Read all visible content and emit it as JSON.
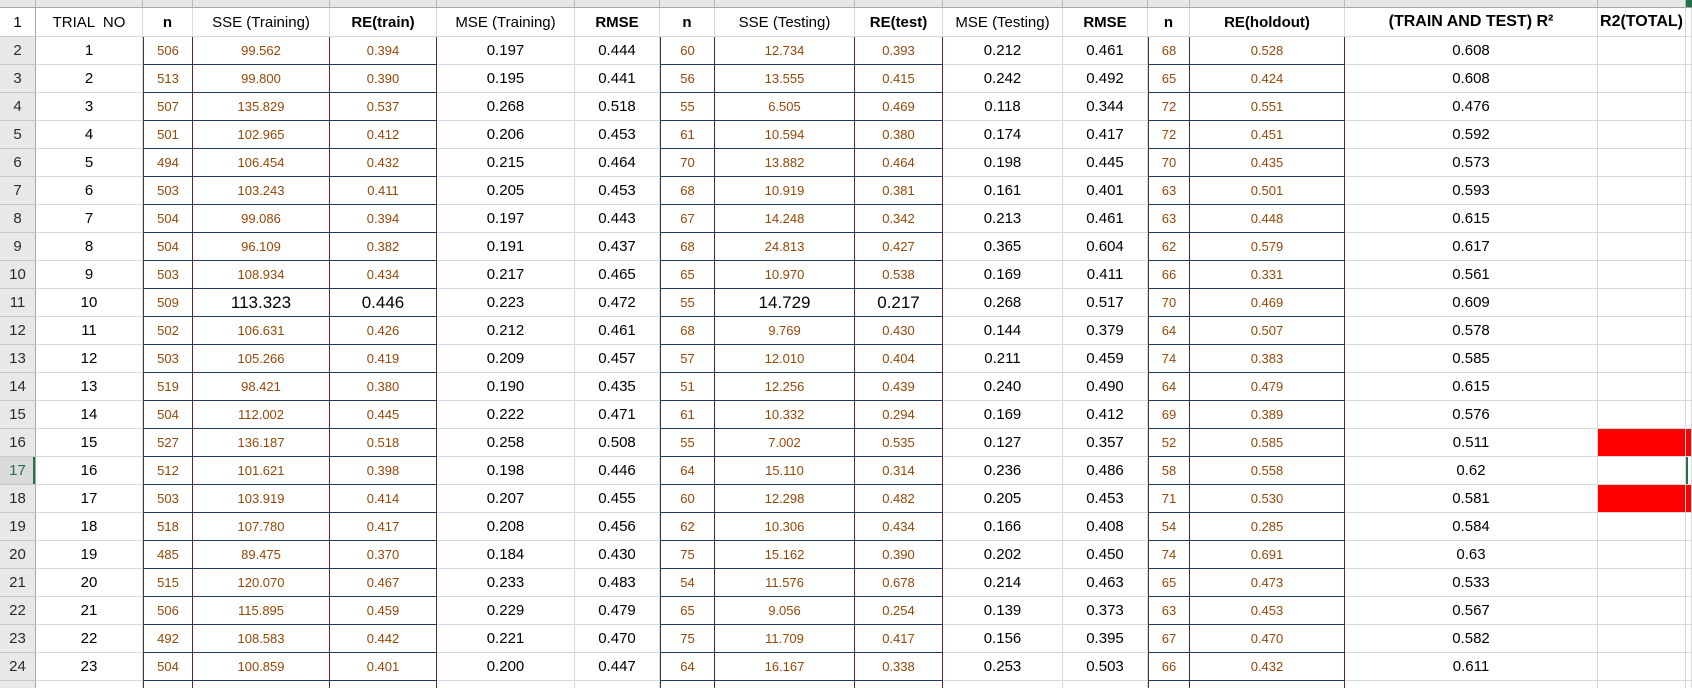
{
  "sheet": {
    "header_row_num": "1",
    "selected_row_num": "17",
    "red_fill_row_nums": [
      "16",
      "18"
    ],
    "emphasized_row_num": "11",
    "emphasized_keys": [
      "sse_train",
      "re_train",
      "sse_test",
      "re_test"
    ],
    "colors": {
      "brown_text": "#974706",
      "navy_border": "#1F3864",
      "maroon_border": "#632423",
      "red_fill": "#FF0000",
      "selection_green": "#217346",
      "gutter_gray": "#E8E8E8"
    },
    "columns": [
      {
        "key": "trial",
        "label": "TRIAL  NO"
      },
      {
        "key": "n_train",
        "label": "n"
      },
      {
        "key": "sse_train",
        "label": "SSE (Training)"
      },
      {
        "key": "re_train",
        "label": "RE(train)"
      },
      {
        "key": "mse_train",
        "label": "MSE (Training)"
      },
      {
        "key": "rmse_train",
        "label": "RMSE"
      },
      {
        "key": "n_test",
        "label": "n"
      },
      {
        "key": "sse_test",
        "label": "SSE (Testing)"
      },
      {
        "key": "re_test",
        "label": "RE(test)"
      },
      {
        "key": "mse_test",
        "label": "MSE (Testing)"
      },
      {
        "key": "rmse_test",
        "label": "RMSE"
      },
      {
        "key": "n_holdout",
        "label": "n"
      },
      {
        "key": "re_holdout",
        "label": "RE(holdout)"
      },
      {
        "key": "r2_traintest",
        "label": "(TRAIN AND TEST) R²"
      },
      {
        "key": "r2_total",
        "label": "R2(TOTAL)"
      },
      {
        "key": "stub",
        "label": ""
      }
    ],
    "rows": [
      {
        "num": "2",
        "trial": "1",
        "n_train": "506",
        "sse_train": "99.562",
        "re_train": "0.394",
        "mse_train": "0.197",
        "rmse_train": "0.444",
        "n_test": "60",
        "sse_test": "12.734",
        "re_test": "0.393",
        "mse_test": "0.212",
        "rmse_test": "0.461",
        "n_holdout": "68",
        "re_holdout": "0.528",
        "r2_traintest": "0.608",
        "r2_total": ""
      },
      {
        "num": "3",
        "trial": "2",
        "n_train": "513",
        "sse_train": "99.800",
        "re_train": "0.390",
        "mse_train": "0.195",
        "rmse_train": "0.441",
        "n_test": "56",
        "sse_test": "13.555",
        "re_test": "0.415",
        "mse_test": "0.242",
        "rmse_test": "0.492",
        "n_holdout": "65",
        "re_holdout": "0.424",
        "r2_traintest": "0.608",
        "r2_total": ""
      },
      {
        "num": "4",
        "trial": "3",
        "n_train": "507",
        "sse_train": "135.829",
        "re_train": "0.537",
        "mse_train": "0.268",
        "rmse_train": "0.518",
        "n_test": "55",
        "sse_test": "6.505",
        "re_test": "0.469",
        "mse_test": "0.118",
        "rmse_test": "0.344",
        "n_holdout": "72",
        "re_holdout": "0.551",
        "r2_traintest": "0.476",
        "r2_total": ""
      },
      {
        "num": "5",
        "trial": "4",
        "n_train": "501",
        "sse_train": "102.965",
        "re_train": "0.412",
        "mse_train": "0.206",
        "rmse_train": "0.453",
        "n_test": "61",
        "sse_test": "10.594",
        "re_test": "0.380",
        "mse_test": "0.174",
        "rmse_test": "0.417",
        "n_holdout": "72",
        "re_holdout": "0.451",
        "r2_traintest": "0.592",
        "r2_total": ""
      },
      {
        "num": "6",
        "trial": "5",
        "n_train": "494",
        "sse_train": "106.454",
        "re_train": "0.432",
        "mse_train": "0.215",
        "rmse_train": "0.464",
        "n_test": "70",
        "sse_test": "13.882",
        "re_test": "0.464",
        "mse_test": "0.198",
        "rmse_test": "0.445",
        "n_holdout": "70",
        "re_holdout": "0.435",
        "r2_traintest": "0.573",
        "r2_total": ""
      },
      {
        "num": "7",
        "trial": "6",
        "n_train": "503",
        "sse_train": "103.243",
        "re_train": "0.411",
        "mse_train": "0.205",
        "rmse_train": "0.453",
        "n_test": "68",
        "sse_test": "10.919",
        "re_test": "0.381",
        "mse_test": "0.161",
        "rmse_test": "0.401",
        "n_holdout": "63",
        "re_holdout": "0.501",
        "r2_traintest": "0.593",
        "r2_total": ""
      },
      {
        "num": "8",
        "trial": "7",
        "n_train": "504",
        "sse_train": "99.086",
        "re_train": "0.394",
        "mse_train": "0.197",
        "rmse_train": "0.443",
        "n_test": "67",
        "sse_test": "14.248",
        "re_test": "0.342",
        "mse_test": "0.213",
        "rmse_test": "0.461",
        "n_holdout": "63",
        "re_holdout": "0.448",
        "r2_traintest": "0.615",
        "r2_total": ""
      },
      {
        "num": "9",
        "trial": "8",
        "n_train": "504",
        "sse_train": "96.109",
        "re_train": "0.382",
        "mse_train": "0.191",
        "rmse_train": "0.437",
        "n_test": "68",
        "sse_test": "24.813",
        "re_test": "0.427",
        "mse_test": "0.365",
        "rmse_test": "0.604",
        "n_holdout": "62",
        "re_holdout": "0.579",
        "r2_traintest": "0.617",
        "r2_total": ""
      },
      {
        "num": "10",
        "trial": "9",
        "n_train": "503",
        "sse_train": "108.934",
        "re_train": "0.434",
        "mse_train": "0.217",
        "rmse_train": "0.465",
        "n_test": "65",
        "sse_test": "10.970",
        "re_test": "0.538",
        "mse_test": "0.169",
        "rmse_test": "0.411",
        "n_holdout": "66",
        "re_holdout": "0.331",
        "r2_traintest": "0.561",
        "r2_total": ""
      },
      {
        "num": "11",
        "trial": "10",
        "n_train": "509",
        "sse_train": "113.323",
        "re_train": "0.446",
        "mse_train": "0.223",
        "rmse_train": "0.472",
        "n_test": "55",
        "sse_test": "14.729",
        "re_test": "0.217",
        "mse_test": "0.268",
        "rmse_test": "0.517",
        "n_holdout": "70",
        "re_holdout": "0.469",
        "r2_traintest": "0.609",
        "r2_total": ""
      },
      {
        "num": "12",
        "trial": "11",
        "n_train": "502",
        "sse_train": "106.631",
        "re_train": "0.426",
        "mse_train": "0.212",
        "rmse_train": "0.461",
        "n_test": "68",
        "sse_test": "9.769",
        "re_test": "0.430",
        "mse_test": "0.144",
        "rmse_test": "0.379",
        "n_holdout": "64",
        "re_holdout": "0.507",
        "r2_traintest": "0.578",
        "r2_total": ""
      },
      {
        "num": "13",
        "trial": "12",
        "n_train": "503",
        "sse_train": "105.266",
        "re_train": "0.419",
        "mse_train": "0.209",
        "rmse_train": "0.457",
        "n_test": "57",
        "sse_test": "12.010",
        "re_test": "0.404",
        "mse_test": "0.211",
        "rmse_test": "0.459",
        "n_holdout": "74",
        "re_holdout": "0.383",
        "r2_traintest": "0.585",
        "r2_total": ""
      },
      {
        "num": "14",
        "trial": "13",
        "n_train": "519",
        "sse_train": "98.421",
        "re_train": "0.380",
        "mse_train": "0.190",
        "rmse_train": "0.435",
        "n_test": "51",
        "sse_test": "12.256",
        "re_test": "0.439",
        "mse_test": "0.240",
        "rmse_test": "0.490",
        "n_holdout": "64",
        "re_holdout": "0.479",
        "r2_traintest": "0.615",
        "r2_total": ""
      },
      {
        "num": "15",
        "trial": "14",
        "n_train": "504",
        "sse_train": "112.002",
        "re_train": "0.445",
        "mse_train": "0.222",
        "rmse_train": "0.471",
        "n_test": "61",
        "sse_test": "10.332",
        "re_test": "0.294",
        "mse_test": "0.169",
        "rmse_test": "0.412",
        "n_holdout": "69",
        "re_holdout": "0.389",
        "r2_traintest": "0.576",
        "r2_total": ""
      },
      {
        "num": "16",
        "trial": "15",
        "n_train": "527",
        "sse_train": "136.187",
        "re_train": "0.518",
        "mse_train": "0.258",
        "rmse_train": "0.508",
        "n_test": "55",
        "sse_test": "7.002",
        "re_test": "0.535",
        "mse_test": "0.127",
        "rmse_test": "0.357",
        "n_holdout": "52",
        "re_holdout": "0.585",
        "r2_traintest": "0.511",
        "r2_total": ""
      },
      {
        "num": "17",
        "trial": "16",
        "n_train": "512",
        "sse_train": "101.621",
        "re_train": "0.398",
        "mse_train": "0.198",
        "rmse_train": "0.446",
        "n_test": "64",
        "sse_test": "15.110",
        "re_test": "0.314",
        "mse_test": "0.236",
        "rmse_test": "0.486",
        "n_holdout": "58",
        "re_holdout": "0.558",
        "r2_traintest": "0.62",
        "r2_total": ""
      },
      {
        "num": "18",
        "trial": "17",
        "n_train": "503",
        "sse_train": "103.919",
        "re_train": "0.414",
        "mse_train": "0.207",
        "rmse_train": "0.455",
        "n_test": "60",
        "sse_test": "12.298",
        "re_test": "0.482",
        "mse_test": "0.205",
        "rmse_test": "0.453",
        "n_holdout": "71",
        "re_holdout": "0.530",
        "r2_traintest": "0.581",
        "r2_total": ""
      },
      {
        "num": "19",
        "trial": "18",
        "n_train": "518",
        "sse_train": "107.780",
        "re_train": "0.417",
        "mse_train": "0.208",
        "rmse_train": "0.456",
        "n_test": "62",
        "sse_test": "10.306",
        "re_test": "0.434",
        "mse_test": "0.166",
        "rmse_test": "0.408",
        "n_holdout": "54",
        "re_holdout": "0.285",
        "r2_traintest": "0.584",
        "r2_total": ""
      },
      {
        "num": "20",
        "trial": "19",
        "n_train": "485",
        "sse_train": "89.475",
        "re_train": "0.370",
        "mse_train": "0.184",
        "rmse_train": "0.430",
        "n_test": "75",
        "sse_test": "15.162",
        "re_test": "0.390",
        "mse_test": "0.202",
        "rmse_test": "0.450",
        "n_holdout": "74",
        "re_holdout": "0.691",
        "r2_traintest": "0.63",
        "r2_total": ""
      },
      {
        "num": "21",
        "trial": "20",
        "n_train": "515",
        "sse_train": "120.070",
        "re_train": "0.467",
        "mse_train": "0.233",
        "rmse_train": "0.483",
        "n_test": "54",
        "sse_test": "11.576",
        "re_test": "0.678",
        "mse_test": "0.214",
        "rmse_test": "0.463",
        "n_holdout": "65",
        "re_holdout": "0.473",
        "r2_traintest": "0.533",
        "r2_total": ""
      },
      {
        "num": "22",
        "trial": "21",
        "n_train": "506",
        "sse_train": "115.895",
        "re_train": "0.459",
        "mse_train": "0.229",
        "rmse_train": "0.479",
        "n_test": "65",
        "sse_test": "9.056",
        "re_test": "0.254",
        "mse_test": "0.139",
        "rmse_test": "0.373",
        "n_holdout": "63",
        "re_holdout": "0.453",
        "r2_traintest": "0.567",
        "r2_total": ""
      },
      {
        "num": "23",
        "trial": "22",
        "n_train": "492",
        "sse_train": "108.583",
        "re_train": "0.442",
        "mse_train": "0.221",
        "rmse_train": "0.470",
        "n_test": "75",
        "sse_test": "11.709",
        "re_test": "0.417",
        "mse_test": "0.156",
        "rmse_test": "0.395",
        "n_holdout": "67",
        "re_holdout": "0.470",
        "r2_traintest": "0.582",
        "r2_total": ""
      },
      {
        "num": "24",
        "trial": "23",
        "n_train": "504",
        "sse_train": "100.859",
        "re_train": "0.401",
        "mse_train": "0.200",
        "rmse_train": "0.447",
        "n_test": "64",
        "sse_test": "16.167",
        "re_test": "0.338",
        "mse_test": "0.253",
        "rmse_test": "0.503",
        "n_holdout": "66",
        "re_holdout": "0.432",
        "r2_traintest": "0.611",
        "r2_total": ""
      },
      {
        "num": "",
        "trial": "",
        "n_train": "",
        "sse_train": "",
        "re_train": "",
        "mse_train": "",
        "rmse_train": "",
        "n_test": "",
        "sse_test": "",
        "re_test": "",
        "mse_test": "",
        "rmse_test": "",
        "n_holdout": "",
        "re_holdout": "",
        "r2_traintest": "",
        "r2_total": ""
      }
    ]
  }
}
